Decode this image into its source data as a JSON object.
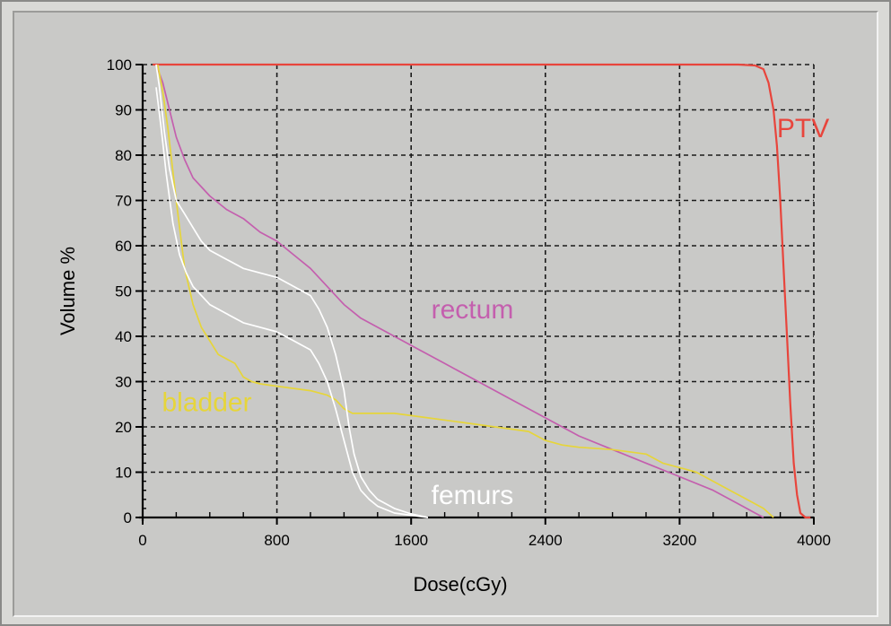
{
  "chart_data": {
    "type": "line",
    "xlabel": "Dose(cGy)",
    "ylabel": "Volume %",
    "xlim": [
      0,
      4000
    ],
    "ylim": [
      0,
      100
    ],
    "x_ticks": [
      0,
      800,
      1600,
      2400,
      3200,
      4000
    ],
    "y_ticks": [
      0,
      10,
      20,
      30,
      40,
      50,
      60,
      70,
      80,
      90,
      100
    ],
    "grid": true,
    "legend": "none (series labelled in-plot)",
    "series": [
      {
        "name": "PTV",
        "color": "#e8453c",
        "label_at": [
          3780,
          84
        ],
        "points": [
          [
            60,
            100
          ],
          [
            500,
            100
          ],
          [
            1000,
            100
          ],
          [
            2000,
            100
          ],
          [
            3000,
            100
          ],
          [
            3550,
            100
          ],
          [
            3650,
            99.8
          ],
          [
            3700,
            99
          ],
          [
            3730,
            96
          ],
          [
            3760,
            90
          ],
          [
            3780,
            82
          ],
          [
            3800,
            70
          ],
          [
            3820,
            55
          ],
          [
            3840,
            40
          ],
          [
            3860,
            25
          ],
          [
            3880,
            12
          ],
          [
            3900,
            5
          ],
          [
            3920,
            1
          ],
          [
            3950,
            0
          ],
          [
            3980,
            0
          ]
        ]
      },
      {
        "name": "rectum",
        "color": "#c45fae",
        "label_at": [
          1720,
          44
        ],
        "points": [
          [
            80,
            100
          ],
          [
            120,
            96
          ],
          [
            160,
            90
          ],
          [
            200,
            84
          ],
          [
            250,
            79
          ],
          [
            300,
            75
          ],
          [
            400,
            71
          ],
          [
            500,
            68
          ],
          [
            600,
            66
          ],
          [
            700,
            63
          ],
          [
            800,
            61
          ],
          [
            900,
            58
          ],
          [
            1000,
            55
          ],
          [
            1100,
            51
          ],
          [
            1200,
            47
          ],
          [
            1300,
            44
          ],
          [
            1400,
            42
          ],
          [
            1500,
            40
          ],
          [
            1600,
            38
          ],
          [
            1800,
            34
          ],
          [
            2000,
            30
          ],
          [
            2200,
            26
          ],
          [
            2400,
            22
          ],
          [
            2600,
            18
          ],
          [
            2800,
            15
          ],
          [
            3000,
            12
          ],
          [
            3200,
            9
          ],
          [
            3400,
            6
          ],
          [
            3550,
            3
          ],
          [
            3650,
            1
          ],
          [
            3700,
            0
          ]
        ]
      },
      {
        "name": "bladder",
        "color": "#e6d53a",
        "label_at": [
          115,
          23.5
        ],
        "points": [
          [
            90,
            100
          ],
          [
            120,
            94
          ],
          [
            150,
            86
          ],
          [
            200,
            70
          ],
          [
            250,
            55
          ],
          [
            300,
            47
          ],
          [
            350,
            42
          ],
          [
            400,
            39
          ],
          [
            450,
            36
          ],
          [
            500,
            35
          ],
          [
            550,
            34
          ],
          [
            600,
            31
          ],
          [
            650,
            30
          ],
          [
            700,
            29.5
          ],
          [
            800,
            29
          ],
          [
            900,
            28.5
          ],
          [
            1000,
            28
          ],
          [
            1100,
            27
          ],
          [
            1150,
            26
          ],
          [
            1200,
            24
          ],
          [
            1250,
            23
          ],
          [
            1300,
            23
          ],
          [
            1500,
            23
          ],
          [
            1700,
            22
          ],
          [
            1900,
            21
          ],
          [
            2100,
            20
          ],
          [
            2300,
            19
          ],
          [
            2400,
            17
          ],
          [
            2500,
            16
          ],
          [
            2600,
            15.5
          ],
          [
            2800,
            15
          ],
          [
            3000,
            14
          ],
          [
            3100,
            12
          ],
          [
            3200,
            11
          ],
          [
            3300,
            10
          ],
          [
            3400,
            8
          ],
          [
            3500,
            6
          ],
          [
            3600,
            4
          ],
          [
            3700,
            2
          ],
          [
            3760,
            0
          ]
        ]
      },
      {
        "name": "femurs",
        "color": "#ffffff",
        "label_at": [
          1720,
          3
        ],
        "points": [
          [
            80,
            100
          ],
          [
            100,
            95
          ],
          [
            130,
            85
          ],
          [
            160,
            77
          ],
          [
            200,
            70
          ],
          [
            250,
            67
          ],
          [
            300,
            64
          ],
          [
            350,
            61
          ],
          [
            400,
            59
          ],
          [
            500,
            57
          ],
          [
            600,
            55
          ],
          [
            700,
            54
          ],
          [
            800,
            53
          ],
          [
            900,
            51
          ],
          [
            1000,
            49
          ],
          [
            1050,
            46
          ],
          [
            1100,
            42
          ],
          [
            1150,
            36
          ],
          [
            1200,
            28
          ],
          [
            1230,
            20
          ],
          [
            1260,
            14
          ],
          [
            1300,
            9
          ],
          [
            1350,
            6
          ],
          [
            1400,
            4
          ],
          [
            1500,
            2
          ],
          [
            1600,
            0.8
          ],
          [
            1700,
            0
          ]
        ]
      },
      {
        "name": "femurs",
        "color": "#ffffff",
        "points": [
          [
            80,
            95
          ],
          [
            110,
            86
          ],
          [
            140,
            76
          ],
          [
            180,
            65
          ],
          [
            220,
            58
          ],
          [
            260,
            54
          ],
          [
            300,
            51
          ],
          [
            400,
            47
          ],
          [
            500,
            45
          ],
          [
            600,
            43
          ],
          [
            700,
            42
          ],
          [
            800,
            41
          ],
          [
            900,
            39
          ],
          [
            1000,
            37
          ],
          [
            1050,
            34
          ],
          [
            1100,
            30
          ],
          [
            1150,
            24
          ],
          [
            1200,
            17
          ],
          [
            1250,
            10
          ],
          [
            1300,
            6
          ],
          [
            1350,
            4
          ],
          [
            1400,
            2.5
          ],
          [
            1500,
            1
          ],
          [
            1600,
            0.5
          ],
          [
            1700,
            0
          ]
        ]
      }
    ]
  }
}
